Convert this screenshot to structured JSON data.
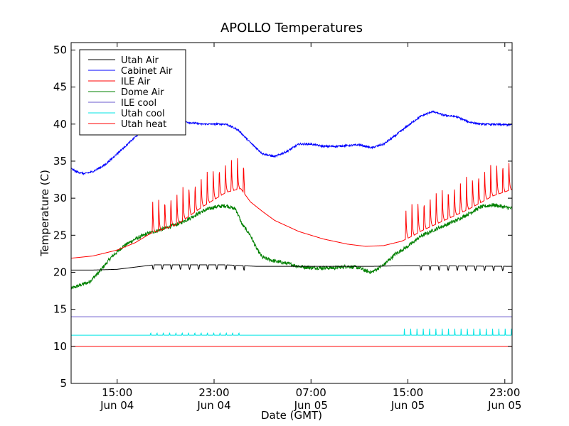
{
  "chart_data": {
    "type": "line",
    "title": "APOLLO Temperatures",
    "xlabel": "Date (GMT)",
    "ylabel": "Temperature (C)",
    "x_unit": "hours since Jun 04 00:00 GMT",
    "xlim": [
      11.2,
      47.6
    ],
    "ylim": [
      5,
      51
    ],
    "yticks": [
      5,
      10,
      15,
      20,
      25,
      30,
      35,
      40,
      45,
      50
    ],
    "xticks": [
      {
        "x": 15,
        "line1": "15:00",
        "line2": "Jun 04"
      },
      {
        "x": 23,
        "line1": "23:00",
        "line2": "Jun 04"
      },
      {
        "x": 31,
        "line1": "07:00",
        "line2": "Jun 05"
      },
      {
        "x": 39,
        "line1": "15:00",
        "line2": "Jun 05"
      },
      {
        "x": 47,
        "line1": "23:00",
        "line2": "Jun 05"
      }
    ],
    "legend_position": "top-left",
    "series": [
      {
        "name": "Utah Air",
        "color": "#000000",
        "base": [
          [
            11.2,
            20.3
          ],
          [
            13,
            20.3
          ],
          [
            15,
            20.4
          ],
          [
            17,
            20.8
          ],
          [
            18,
            21.0
          ],
          [
            24,
            21.0
          ],
          [
            26.5,
            20.8
          ],
          [
            36,
            20.8
          ],
          [
            39,
            20.9
          ],
          [
            47.6,
            20.8
          ]
        ],
        "spikes": {
          "start": 17.9,
          "end": 25.5,
          "period": 0.75,
          "height": -0.6,
          "width": 0.15,
          "round": true
        },
        "spikes2": {
          "start": 40.0,
          "end": 47.5,
          "period": 0.75,
          "height": -0.6,
          "width": 0.15,
          "round": true
        }
      },
      {
        "name": "Cabinet Air",
        "color": "#0000ff",
        "base": [
          [
            11.2,
            34.0
          ],
          [
            11.6,
            33.6
          ],
          [
            12.3,
            33.3
          ],
          [
            13,
            33.6
          ],
          [
            14,
            34.5
          ],
          [
            15,
            36
          ],
          [
            16,
            37.5
          ],
          [
            17,
            39
          ],
          [
            18,
            40.2
          ],
          [
            19,
            40.6
          ],
          [
            20,
            40.5
          ],
          [
            21,
            40.2
          ],
          [
            22,
            40
          ],
          [
            23,
            40
          ],
          [
            24,
            40
          ],
          [
            25,
            39.2
          ],
          [
            26,
            37.5
          ],
          [
            27,
            36.0
          ],
          [
            28,
            35.6
          ],
          [
            29,
            36.3
          ],
          [
            30,
            37.3
          ],
          [
            31,
            37.3
          ],
          [
            32,
            37.0
          ],
          [
            33,
            37.0
          ],
          [
            35,
            37.2
          ],
          [
            36,
            36.8
          ],
          [
            37,
            37.3
          ],
          [
            38,
            38.5
          ],
          [
            39,
            39.8
          ],
          [
            40,
            41
          ],
          [
            41,
            41.7
          ],
          [
            42,
            41.2
          ],
          [
            43,
            41.0
          ],
          [
            44,
            40.3
          ],
          [
            45,
            40.0
          ],
          [
            47.6,
            39.9
          ]
        ],
        "noise": 0.25
      },
      {
        "name": "ILE Air",
        "color": "#ff0000",
        "base": [
          [
            11.2,
            21.9
          ],
          [
            13,
            22.2
          ],
          [
            15,
            23.0
          ],
          [
            16.5,
            24.0
          ],
          [
            17.8,
            25.3
          ],
          [
            18.5,
            25.6
          ],
          [
            20,
            26.5
          ],
          [
            22,
            28.8
          ],
          [
            24,
            30.8
          ],
          [
            25.2,
            31.3
          ],
          [
            26,
            29.5
          ],
          [
            27,
            28.2
          ],
          [
            28,
            27.0
          ],
          [
            30,
            25.5
          ],
          [
            32,
            24.5
          ],
          [
            34,
            23.8
          ],
          [
            35.5,
            23.5
          ],
          [
            37,
            23.6
          ],
          [
            38.5,
            24.2
          ],
          [
            39.5,
            25.0
          ],
          [
            40,
            25.5
          ],
          [
            42,
            27.0
          ],
          [
            44,
            28.5
          ],
          [
            46,
            30.3
          ],
          [
            47.6,
            31.2
          ]
        ],
        "spikes": {
          "start": 17.9,
          "end": 25.5,
          "period": 0.5,
          "height": 4.5,
          "width": 0.2,
          "round": false
        },
        "spikes2": {
          "start": 38.8,
          "end": 47.6,
          "period": 0.5,
          "height": 4.5,
          "width": 0.2,
          "round": false
        }
      },
      {
        "name": "Dome Air",
        "color": "#008000",
        "base": [
          [
            11.2,
            17.8
          ],
          [
            12,
            18.3
          ],
          [
            12.7,
            18.7
          ],
          [
            13.5,
            20
          ],
          [
            14.5,
            22
          ],
          [
            15.5,
            23.5
          ],
          [
            16.5,
            24.5
          ],
          [
            17.5,
            25.2
          ],
          [
            18.5,
            25.7
          ],
          [
            20,
            26.5
          ],
          [
            21,
            27.3
          ],
          [
            22,
            28.2
          ],
          [
            23,
            28.8
          ],
          [
            24,
            29.0
          ],
          [
            24.8,
            28.5
          ],
          [
            25.3,
            26.5
          ],
          [
            26,
            25.0
          ],
          [
            26.5,
            23.2
          ],
          [
            27,
            22.0
          ],
          [
            28,
            21.5
          ],
          [
            29,
            21.2
          ],
          [
            30,
            20.8
          ],
          [
            31,
            20.6
          ],
          [
            33,
            20.6
          ],
          [
            34,
            20.8
          ],
          [
            35,
            20.6
          ],
          [
            35.5,
            20.2
          ],
          [
            36,
            20.0
          ],
          [
            37,
            21.0
          ],
          [
            38,
            22.5
          ],
          [
            39,
            23.5
          ],
          [
            40,
            24.8
          ],
          [
            41,
            25.6
          ],
          [
            42,
            26.3
          ],
          [
            43,
            27.0
          ],
          [
            44,
            27.9
          ],
          [
            45,
            28.8
          ],
          [
            46,
            29.1
          ],
          [
            47,
            28.8
          ],
          [
            47.6,
            28.6
          ]
        ],
        "noise": 0.5
      },
      {
        "name": "ILE cool",
        "color": "#6a5acd",
        "base": [
          [
            11.2,
            14.0
          ],
          [
            47.6,
            14.0
          ]
        ]
      },
      {
        "name": "Utah cool",
        "color": "#00e5e5",
        "base": [
          [
            11.2,
            11.5
          ],
          [
            47.6,
            11.5
          ]
        ],
        "spikes": {
          "start": 17.75,
          "end": 25.5,
          "period": 0.52,
          "height": 1.0,
          "width": 0.06,
          "round": false
        },
        "spikes2": {
          "start": 38.7,
          "end": 47.6,
          "period": 0.52,
          "height": 1.0,
          "width": 0.06,
          "round": false
        }
      },
      {
        "name": "Utah heat",
        "color": "#ff0000",
        "base": [
          [
            11.2,
            10.0
          ],
          [
            47.6,
            10.0
          ]
        ]
      }
    ]
  }
}
